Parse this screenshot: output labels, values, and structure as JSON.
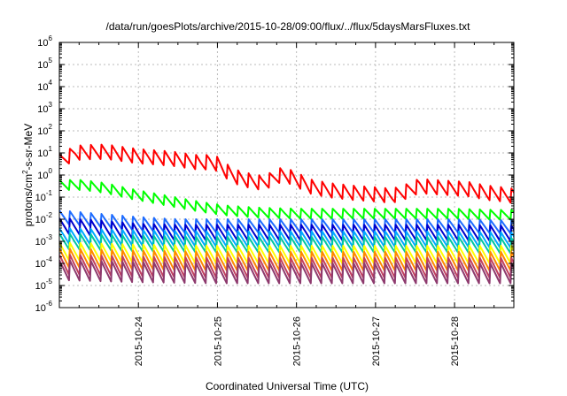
{
  "chart_data": {
    "type": "line",
    "title": "/data/run/goesPlots/archive/2015-10-28/09:00/flux/../flux/5daysMarsFluxes.txt",
    "xlabel": "Coordinated Universal Time (UTC)",
    "ylabel_base": "protons/cm",
    "ylabel_exp": "2",
    "ylabel_rest": "-s-sr-MeV",
    "yscale": "log",
    "ylim_exp": [
      -6,
      6
    ],
    "ytick_base": "10",
    "ytick_exponents": [
      "-6",
      "-5",
      "-4",
      "-3",
      "-2",
      "-1",
      "0",
      "1",
      "2",
      "3",
      "4",
      "5",
      "6"
    ],
    "xlim": [
      0,
      5.75
    ],
    "x_unit": "days since 2015-10-23 00:00 UTC",
    "xtick_labels": [
      "2015-10-24",
      "2015-10-25",
      "2015-10-26",
      "2015-10-27",
      "2015-10-28"
    ],
    "xtick_values": [
      1,
      2,
      3,
      4,
      5
    ],
    "grid": true,
    "legend": "none",
    "series": [
      {
        "color": "#ff0000",
        "style": "sawtooth",
        "points": [
          [
            0,
            0.6
          ],
          [
            0.2,
            1.0
          ],
          [
            0.45,
            1.05
          ],
          [
            0.6,
            1.05
          ],
          [
            0.8,
            0.95
          ],
          [
            1.0,
            0.85
          ],
          [
            1.2,
            0.8
          ],
          [
            1.4,
            0.75
          ],
          [
            1.6,
            0.65
          ],
          [
            1.8,
            0.55
          ],
          [
            1.9,
            0.6
          ],
          [
            2.0,
            0.5
          ],
          [
            2.1,
            0.2
          ],
          [
            2.25,
            -0.1
          ],
          [
            2.4,
            -0.25
          ],
          [
            2.55,
            -0.35
          ],
          [
            2.65,
            -0.25
          ],
          [
            2.8,
            0.0
          ],
          [
            2.9,
            -0.05
          ],
          [
            3.05,
            -0.3
          ],
          [
            3.2,
            -0.55
          ],
          [
            3.45,
            -0.7
          ],
          [
            3.7,
            -0.8
          ],
          [
            3.9,
            -0.85
          ],
          [
            4.1,
            -0.9
          ],
          [
            4.2,
            -0.95
          ],
          [
            4.35,
            -0.8
          ],
          [
            4.55,
            -0.5
          ],
          [
            4.75,
            -0.55
          ],
          [
            5.0,
            -0.6
          ],
          [
            5.2,
            -0.65
          ],
          [
            5.4,
            -0.8
          ],
          [
            5.55,
            -0.85
          ],
          [
            5.75,
            -0.95
          ]
        ],
        "amp": 0.65,
        "period": 0.133
      },
      {
        "color": "#00ff00",
        "style": "sawtooth",
        "points": [
          [
            0,
            -0.45
          ],
          [
            0.3,
            -0.45
          ],
          [
            0.6,
            -0.6
          ],
          [
            0.9,
            -0.85
          ],
          [
            1.2,
            -1.05
          ],
          [
            1.5,
            -1.25
          ],
          [
            1.8,
            -1.45
          ],
          [
            2.1,
            -1.6
          ],
          [
            2.5,
            -1.7
          ],
          [
            3.0,
            -1.75
          ],
          [
            3.5,
            -1.75
          ],
          [
            4.0,
            -1.75
          ],
          [
            4.5,
            -1.75
          ],
          [
            5.0,
            -1.75
          ],
          [
            5.5,
            -1.8
          ],
          [
            5.75,
            -1.8
          ]
        ],
        "amp": 0.45,
        "period": 0.133
      },
      {
        "color": "#1e6cff",
        "style": "sawtooth",
        "points": [
          [
            0,
            -1.9
          ],
          [
            0.5,
            -2.05
          ],
          [
            1.0,
            -2.2
          ],
          [
            1.5,
            -2.3
          ],
          [
            2.0,
            -2.3
          ],
          [
            3.0,
            -2.3
          ],
          [
            4.0,
            -2.3
          ],
          [
            5.0,
            -2.3
          ],
          [
            5.75,
            -2.35
          ]
        ],
        "amp": 0.6,
        "period": 0.133
      },
      {
        "color": "#0000cc",
        "style": "sawtooth",
        "points": [
          [
            0,
            -2.3
          ],
          [
            0.5,
            -2.4
          ],
          [
            1.0,
            -2.55
          ],
          [
            1.5,
            -2.6
          ],
          [
            2.0,
            -2.6
          ],
          [
            3.0,
            -2.6
          ],
          [
            4.0,
            -2.6
          ],
          [
            5.0,
            -2.6
          ],
          [
            5.75,
            -2.65
          ]
        ],
        "amp": 0.7,
        "period": 0.133
      },
      {
        "color": "#00aaff",
        "style": "sawtooth",
        "points": [
          [
            0,
            -2.75
          ],
          [
            1.0,
            -2.85
          ],
          [
            2.0,
            -2.9
          ],
          [
            3.0,
            -2.9
          ],
          [
            4.0,
            -2.9
          ],
          [
            5.0,
            -2.9
          ],
          [
            5.75,
            -2.95
          ]
        ],
        "amp": 0.7,
        "period": 0.133
      },
      {
        "color": "#00c8a0",
        "style": "sawtooth",
        "points": [
          [
            0,
            -3.0
          ],
          [
            1.0,
            -3.1
          ],
          [
            2.0,
            -3.15
          ],
          [
            3.0,
            -3.15
          ],
          [
            4.0,
            -3.15
          ],
          [
            5.0,
            -3.15
          ],
          [
            5.75,
            -3.2
          ]
        ],
        "amp": 0.7,
        "period": 0.133
      },
      {
        "color": "#ffff00",
        "style": "sawtooth",
        "points": [
          [
            0,
            -3.45
          ],
          [
            1.0,
            -3.55
          ],
          [
            2.0,
            -3.6
          ],
          [
            3.0,
            -3.6
          ],
          [
            4.0,
            -3.6
          ],
          [
            5.0,
            -3.6
          ],
          [
            5.75,
            -3.6
          ]
        ],
        "amp": 0.8,
        "period": 0.133
      },
      {
        "color": "#ff8800",
        "style": "sawtooth",
        "points": [
          [
            0,
            -3.75
          ],
          [
            1.0,
            -3.85
          ],
          [
            2.0,
            -3.9
          ],
          [
            3.0,
            -3.9
          ],
          [
            4.0,
            -3.9
          ],
          [
            5.0,
            -3.9
          ],
          [
            5.75,
            -3.9
          ]
        ],
        "amp": 0.85,
        "period": 0.133
      },
      {
        "color": "#c04060",
        "style": "sawtooth",
        "points": [
          [
            0,
            -4.05
          ],
          [
            1.0,
            -4.15
          ],
          [
            2.0,
            -4.2
          ],
          [
            3.0,
            -4.2
          ],
          [
            4.0,
            -4.2
          ],
          [
            5.0,
            -4.2
          ],
          [
            5.75,
            -4.2
          ]
        ],
        "amp": 0.9,
        "period": 0.133
      },
      {
        "color": "#8e3a6e",
        "style": "sawtooth",
        "points": [
          [
            0,
            -4.3
          ],
          [
            1.0,
            -4.4
          ],
          [
            2.0,
            -4.45
          ],
          [
            3.0,
            -4.45
          ],
          [
            4.0,
            -4.45
          ],
          [
            5.0,
            -4.45
          ],
          [
            5.75,
            -4.45
          ]
        ],
        "amp": 0.9,
        "period": 0.133
      }
    ]
  }
}
